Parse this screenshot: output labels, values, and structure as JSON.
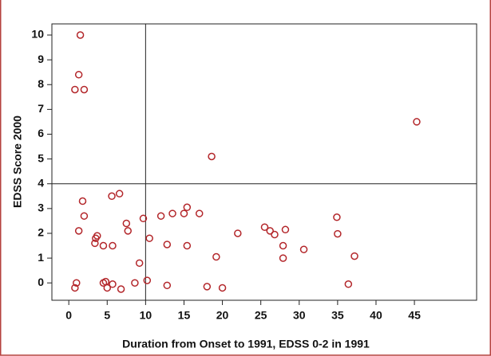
{
  "chart_data": {
    "type": "scatter",
    "x_label": "Duration from Onset to 1991, EDSS 0-2 in 1991",
    "y_label": "EDSS Score 2000",
    "color": "#b3262a",
    "xlim": [
      -2.2,
      53.1
    ],
    "xticks": [
      0,
      5,
      10,
      15,
      20,
      25,
      30,
      35,
      40,
      45
    ],
    "ylim": [
      -0.7,
      10.45
    ],
    "yticks": [
      0,
      1,
      2,
      3,
      4,
      5,
      6,
      7,
      8,
      9,
      10
    ],
    "vline": 10,
    "hline": 4,
    "x": [
      0.8,
      1.5,
      1.3,
      2,
      0.8,
      1,
      1.8,
      2,
      1.3,
      3.4,
      3.5,
      3.7,
      5.6,
      6.6,
      7.5,
      7.7,
      4.5,
      5.7,
      4.5,
      4.8,
      5,
      5.7,
      6.8,
      8.6,
      9.2,
      9.7,
      10.2,
      10.5,
      12,
      12.8,
      12.8,
      13.5,
      15,
      15.4,
      15.4,
      17,
      18,
      18.6,
      19.2,
      20,
      22,
      25.5,
      26.2,
      26.8,
      27.9,
      27.9,
      28.2,
      30.6,
      34.9,
      35,
      36.4,
      37.2,
      45.3
    ],
    "values": [
      7.8,
      10,
      8.4,
      7.8,
      -0.2,
      0,
      3.3,
      2.7,
      2.1,
      1.6,
      1.8,
      1.9,
      3.5,
      3.6,
      2.4,
      2.1,
      1.5,
      1.5,
      0,
      0.05,
      -0.2,
      -0.05,
      -0.25,
      0,
      0.8,
      2.6,
      0.1,
      1.8,
      2.7,
      1.55,
      -0.1,
      2.8,
      2.8,
      3.05,
      1.5,
      2.8,
      -0.15,
      5.1,
      1.05,
      -0.2,
      2,
      2.25,
      2.1,
      1.95,
      1.5,
      1,
      2.15,
      1.35,
      2.65,
      1.98,
      -0.05,
      1.08,
      6.5
    ]
  }
}
